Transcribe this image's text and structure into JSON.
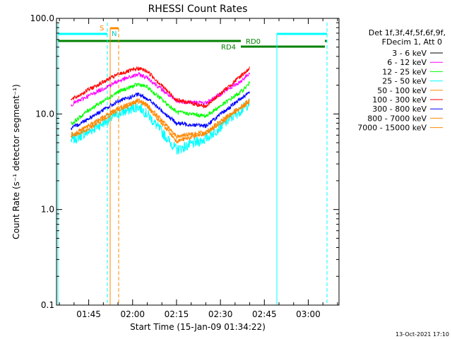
{
  "chart_data": {
    "type": "line",
    "title": "RHESSI Count Rates",
    "xlabel": "Start Time (15-Jan-09 01:34:22)",
    "ylabel": "Count Rate (s⁻¹ detector segment⁻¹)",
    "y_scale": "log",
    "ylim": [
      0.1,
      100.0
    ],
    "xlim": [
      "01:34:22",
      "03:10:40"
    ],
    "y_ticks": [
      "0.1",
      "1.0",
      "10.0",
      "100.0"
    ],
    "x_ticks": [
      "01:45",
      "02:00",
      "02:15",
      "02:30",
      "02:45",
      "03:00"
    ],
    "grid": false,
    "legend_position": "right",
    "detector_info": [
      "Det 1f,3f,4f,5f,6f,9f,",
      "FDecim 1, Att 0"
    ],
    "timestamp": "13-Oct-2021 17:10",
    "time_ticks_minutes": [
      0,
      15,
      30,
      45,
      60,
      75
    ],
    "x_origin_label": "01:45",
    "series": [
      {
        "name": "3 - 6 keV",
        "color": "#000000",
        "x": [],
        "values": []
      },
      {
        "name": "6 - 12 keV",
        "color": "#ff00ff",
        "x": [
          -6,
          0,
          10,
          17,
          20,
          30,
          40,
          52,
          55
        ],
        "values": [
          12.5,
          15.5,
          22,
          26,
          24,
          13.5,
          13,
          22,
          27
        ]
      },
      {
        "name": "12 - 25 keV",
        "color": "#00ff00",
        "x": [
          -6,
          0,
          10,
          17,
          20,
          30,
          40,
          52,
          55
        ],
        "values": [
          7.8,
          11,
          17,
          20.5,
          19,
          10.5,
          9.5,
          17,
          21
        ]
      },
      {
        "name": "25 - 50 keV",
        "color": "#00ffff",
        "x": [
          -6,
          0,
          10,
          17,
          20,
          30,
          40,
          52,
          55
        ],
        "values": [
          5.3,
          6.5,
          10,
          12,
          10,
          4.2,
          5.5,
          11,
          13
        ]
      },
      {
        "name": "50 - 100 keV",
        "color": "#ff8800",
        "x": [
          -6,
          0,
          10,
          17,
          20,
          30,
          40,
          52,
          55
        ],
        "values": [
          5.8,
          7,
          11,
          13.5,
          12,
          5.2,
          6.2,
          11.5,
          13.5
        ]
      },
      {
        "name": "100 - 300 keV",
        "color": "#ff0000",
        "x": [
          -6,
          0,
          10,
          17,
          20,
          30,
          40,
          52,
          55
        ],
        "values": [
          14,
          18,
          26,
          30,
          28,
          14,
          12,
          25,
          30
        ]
      },
      {
        "name": "300 - 800 keV",
        "color": "#0000ff",
        "x": [
          -6,
          0,
          10,
          17,
          20,
          30,
          40,
          52,
          55
        ],
        "values": [
          7,
          9,
          13.5,
          16,
          14.5,
          8,
          7.5,
          14.5,
          17
        ]
      },
      {
        "name": "800 - 7000 keV",
        "color": "#ff8800",
        "x": [
          -6,
          0,
          10,
          17,
          20,
          30,
          40,
          52,
          55
        ],
        "values": [
          6,
          7.5,
          11.5,
          14,
          12.5,
          5.8,
          6.5,
          12,
          14
        ]
      },
      {
        "name": "7000 - 15000 keV",
        "color": "#ff8800",
        "x": [],
        "values": []
      }
    ],
    "annotations": {
      "flags": [
        {
          "label": "S",
          "color": "#ff8800"
        },
        {
          "label": "N",
          "color": "#00ffff"
        },
        {
          "label": "RD0",
          "color": "#008000"
        },
        {
          "label": "RD4",
          "color": "#008000"
        }
      ]
    }
  }
}
